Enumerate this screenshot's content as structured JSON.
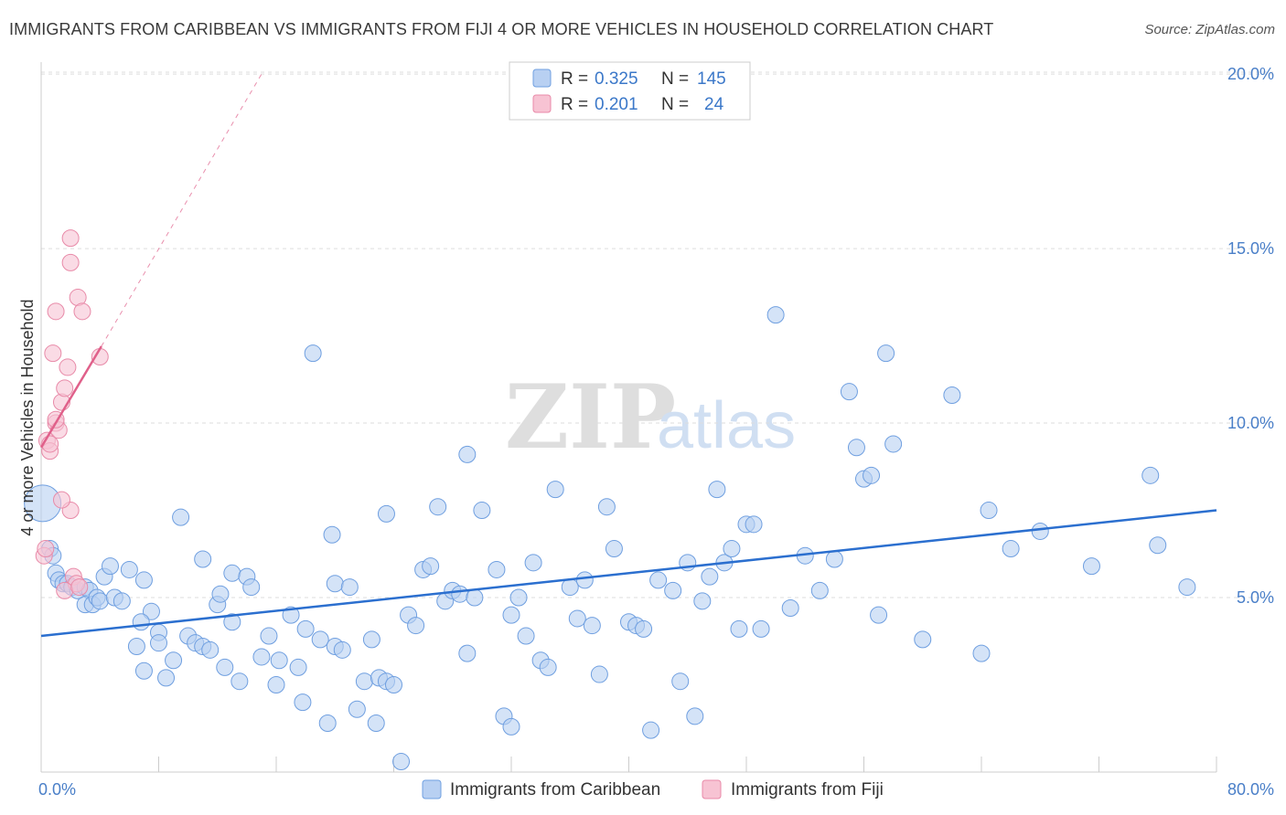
{
  "title": "IMMIGRANTS FROM CARIBBEAN VS IMMIGRANTS FROM FIJI 4 OR MORE VEHICLES IN HOUSEHOLD CORRELATION CHART",
  "source": "Source: ZipAtlas.com",
  "watermark": {
    "zip": "ZIP",
    "atlas": "atlas"
  },
  "legend": {
    "rows": [
      {
        "r_label": "R =",
        "r_value": "0.325",
        "n_label": "N =",
        "n_value": "145"
      },
      {
        "r_label": "R =",
        "r_value": "0.201",
        "n_label": "N =",
        "n_value": "24"
      }
    ]
  },
  "colors": {
    "caribbean_fill": "#b8d0f2",
    "caribbean_stroke": "#6f9fe0",
    "caribbean_line": "#2b6fcf",
    "fiji_fill": "#f7c3d3",
    "fiji_stroke": "#e88aa8",
    "fiji_line": "#e0608a",
    "grid": "#dddddd",
    "tick_label": "#4a7fc8"
  },
  "chart_data": {
    "type": "scatter",
    "title": "IMMIGRANTS FROM CARIBBEAN VS IMMIGRANTS FROM FIJI 4 OR MORE VEHICLES IN HOUSEHOLD CORRELATION CHART",
    "xlabel": "",
    "ylabel": "4 or more Vehicles in Household",
    "xlim": [
      0,
      80
    ],
    "ylim": [
      0,
      20.5
    ],
    "x_tick_labels": [
      "0.0%",
      "80.0%"
    ],
    "y_ticks": [
      5,
      10,
      15,
      20
    ],
    "y_tick_labels": [
      "5.0%",
      "10.0%",
      "15.0%",
      "20.0%"
    ],
    "grid": true,
    "legend_position": "top-center",
    "series": [
      {
        "name": "Immigrants from Caribbean",
        "r": 0.325,
        "n": 145,
        "trend": {
          "x": [
            0,
            80
          ],
          "y": [
            3.9,
            7.5
          ]
        },
        "points": [
          [
            0.1,
            7.7
          ],
          [
            0.6,
            6.4
          ],
          [
            0.8,
            6.2
          ],
          [
            1.0,
            5.7
          ],
          [
            1.2,
            5.5
          ],
          [
            1.5,
            5.4
          ],
          [
            1.8,
            5.4
          ],
          [
            2.1,
            5.3
          ],
          [
            2.5,
            5.2
          ],
          [
            3.0,
            5.3
          ],
          [
            3.3,
            5.2
          ],
          [
            3.0,
            4.8
          ],
          [
            3.5,
            4.8
          ],
          [
            3.8,
            5.0
          ],
          [
            4.0,
            4.9
          ],
          [
            4.3,
            5.6
          ],
          [
            4.7,
            5.9
          ],
          [
            5.0,
            5.0
          ],
          [
            5.5,
            4.9
          ],
          [
            6.0,
            5.8
          ],
          [
            7.0,
            5.5
          ],
          [
            7.5,
            4.6
          ],
          [
            6.8,
            4.3
          ],
          [
            8.0,
            4.0
          ],
          [
            6.5,
            3.6
          ],
          [
            7.0,
            2.9
          ],
          [
            8.5,
            2.7
          ],
          [
            8.0,
            3.7
          ],
          [
            9.0,
            3.2
          ],
          [
            10.0,
            3.9
          ],
          [
            10.5,
            3.7
          ],
          [
            11.0,
            3.6
          ],
          [
            11.5,
            3.5
          ],
          [
            12.5,
            3.0
          ],
          [
            13.0,
            4.3
          ],
          [
            13.5,
            2.6
          ],
          [
            12.0,
            4.8
          ],
          [
            12.2,
            5.1
          ],
          [
            13.0,
            5.7
          ],
          [
            14.0,
            5.6
          ],
          [
            14.3,
            5.3
          ],
          [
            15.0,
            3.3
          ],
          [
            15.5,
            3.9
          ],
          [
            16.0,
            2.5
          ],
          [
            16.2,
            3.2
          ],
          [
            17.0,
            4.5
          ],
          [
            17.5,
            3.0
          ],
          [
            18.0,
            4.1
          ],
          [
            17.8,
            2.0
          ],
          [
            19.0,
            3.8
          ],
          [
            19.5,
            1.4
          ],
          [
            20.0,
            3.6
          ],
          [
            20.5,
            3.5
          ],
          [
            20.0,
            5.4
          ],
          [
            21.0,
            5.3
          ],
          [
            21.5,
            1.8
          ],
          [
            22.0,
            2.6
          ],
          [
            22.5,
            3.8
          ],
          [
            22.8,
            1.4
          ],
          [
            23.0,
            2.7
          ],
          [
            23.5,
            2.6
          ],
          [
            24.0,
            2.5
          ],
          [
            24.5,
            0.3
          ],
          [
            25.0,
            4.5
          ],
          [
            25.5,
            4.2
          ],
          [
            26.0,
            5.8
          ],
          [
            26.5,
            5.9
          ],
          [
            27.0,
            7.6
          ],
          [
            27.5,
            4.9
          ],
          [
            28.0,
            5.2
          ],
          [
            28.5,
            5.1
          ],
          [
            29.0,
            3.4
          ],
          [
            29.5,
            5.0
          ],
          [
            29.0,
            9.1
          ],
          [
            30.0,
            7.5
          ],
          [
            31.0,
            5.8
          ],
          [
            31.5,
            1.6
          ],
          [
            32.0,
            4.5
          ],
          [
            32.5,
            5.0
          ],
          [
            33.0,
            3.9
          ],
          [
            33.5,
            6.0
          ],
          [
            34.0,
            3.2
          ],
          [
            34.5,
            3.0
          ],
          [
            35.0,
            8.1
          ],
          [
            36.0,
            5.3
          ],
          [
            36.5,
            4.4
          ],
          [
            37.0,
            5.5
          ],
          [
            37.5,
            4.2
          ],
          [
            38.0,
            2.8
          ],
          [
            38.5,
            7.6
          ],
          [
            39.0,
            6.4
          ],
          [
            40.0,
            4.3
          ],
          [
            40.5,
            4.2
          ],
          [
            41.0,
            4.1
          ],
          [
            41.5,
            1.2
          ],
          [
            42.0,
            5.5
          ],
          [
            43.0,
            5.2
          ],
          [
            43.5,
            2.6
          ],
          [
            44.0,
            6.0
          ],
          [
            45.0,
            4.9
          ],
          [
            44.5,
            1.6
          ],
          [
            45.5,
            5.6
          ],
          [
            46.0,
            8.1
          ],
          [
            46.5,
            6.0
          ],
          [
            47.0,
            6.4
          ],
          [
            47.5,
            4.1
          ],
          [
            48.0,
            7.1
          ],
          [
            48.5,
            7.1
          ],
          [
            49.0,
            4.1
          ],
          [
            50.0,
            13.1
          ],
          [
            51.0,
            4.7
          ],
          [
            52.0,
            6.2
          ],
          [
            53.0,
            5.2
          ],
          [
            54.0,
            6.1
          ],
          [
            55.0,
            10.9
          ],
          [
            55.5,
            9.3
          ],
          [
            56.0,
            8.4
          ],
          [
            56.5,
            8.5
          ],
          [
            57.0,
            4.5
          ],
          [
            57.5,
            12.0
          ],
          [
            58.0,
            9.4
          ],
          [
            60.0,
            3.8
          ],
          [
            62.0,
            10.8
          ],
          [
            64.0,
            3.4
          ],
          [
            64.5,
            7.5
          ],
          [
            66.0,
            6.4
          ],
          [
            68.0,
            6.9
          ],
          [
            71.5,
            5.9
          ],
          [
            75.5,
            8.5
          ],
          [
            76.0,
            6.5
          ],
          [
            78.0,
            5.3
          ],
          [
            18.5,
            12.0
          ],
          [
            19.8,
            6.8
          ],
          [
            23.5,
            7.4
          ],
          [
            11.0,
            6.1
          ],
          [
            9.5,
            7.3
          ],
          [
            32.0,
            1.3
          ]
        ]
      },
      {
        "name": "Immigrants from Fiji",
        "r": 0.201,
        "n": 24,
        "trend": {
          "x": [
            0,
            4.1
          ],
          "y": [
            9.3,
            12.2
          ]
        },
        "trend_extension": {
          "x": [
            4.1,
            15.0
          ],
          "y": [
            12.2,
            20.0
          ]
        },
        "points": [
          [
            0.2,
            6.2
          ],
          [
            0.4,
            9.5
          ],
          [
            0.6,
            9.2
          ],
          [
            0.8,
            12.0
          ],
          [
            1.0,
            10.0
          ],
          [
            1.2,
            9.8
          ],
          [
            1.4,
            10.6
          ],
          [
            1.6,
            11.0
          ],
          [
            1.8,
            11.6
          ],
          [
            2.0,
            7.5
          ],
          [
            2.2,
            5.6
          ],
          [
            2.4,
            5.4
          ],
          [
            1.0,
            13.2
          ],
          [
            2.0,
            14.6
          ],
          [
            2.0,
            15.3
          ],
          [
            2.5,
            13.6
          ],
          [
            2.8,
            13.2
          ],
          [
            4.0,
            11.9
          ],
          [
            1.4,
            7.8
          ],
          [
            1.6,
            5.2
          ],
          [
            0.6,
            9.4
          ],
          [
            1.0,
            10.1
          ],
          [
            0.3,
            6.4
          ],
          [
            2.6,
            5.3
          ]
        ]
      }
    ]
  },
  "bottom_legend": [
    {
      "label": "Immigrants from Caribbean"
    },
    {
      "label": "Immigrants from Fiji"
    }
  ]
}
